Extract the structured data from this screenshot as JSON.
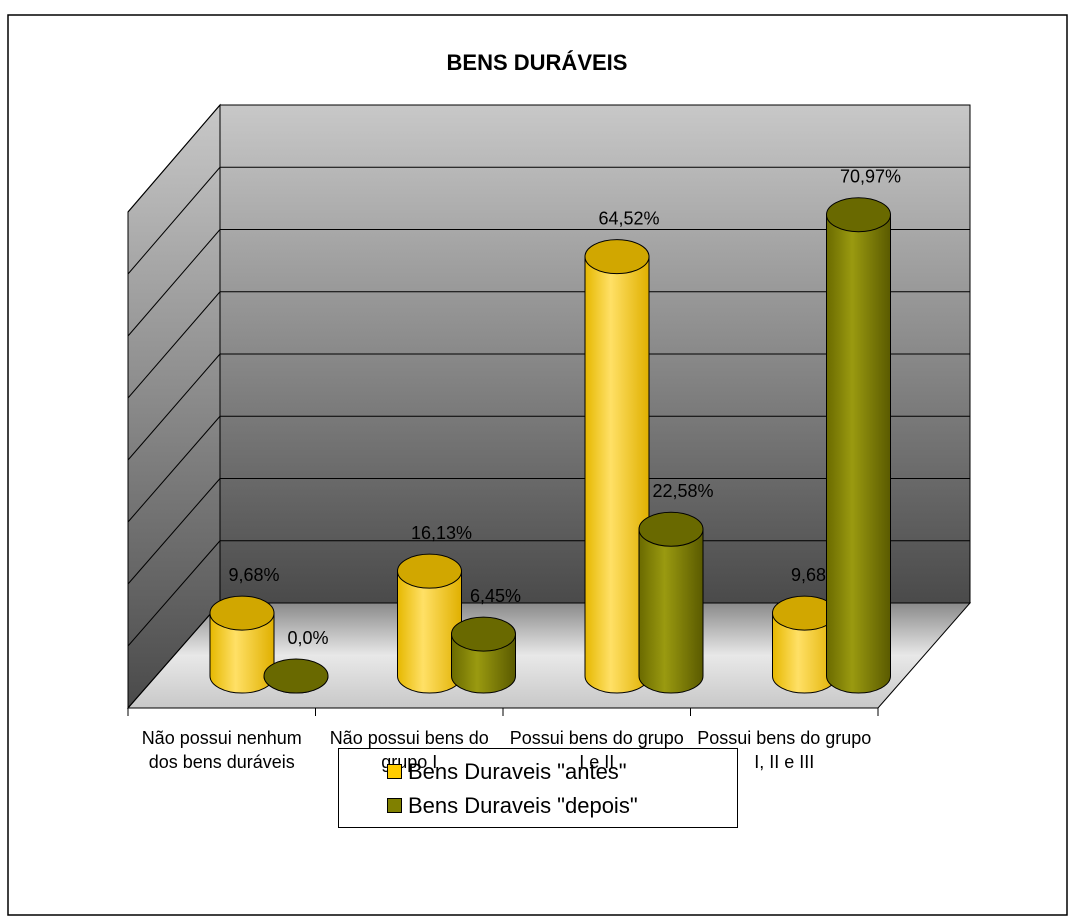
{
  "chart_data": {
    "type": "bar3d",
    "title": "BENS DURÁVEIS",
    "categories": [
      "Não possui nenhum dos bens duráveis",
      "Não possui bens do grupo I",
      "Possui bens do grupo I e II",
      "Possui bens do grupo I, II e III"
    ],
    "series": [
      {
        "name": "Bens Duraveis \"antes\"",
        "color": "#FFCC00",
        "values": [
          9.68,
          16.13,
          64.52,
          9.68
        ],
        "value_labels": [
          "9,68%",
          "16,13%",
          "64,52%",
          "9,68%"
        ]
      },
      {
        "name": "Bens Duraveis \"depois\"",
        "color": "#808000",
        "values": [
          0.0,
          6.45,
          22.58,
          70.97
        ],
        "value_labels": [
          "0,0%",
          "6,45%",
          "22,58%",
          "70,97%"
        ]
      }
    ],
    "ylim": [
      0,
      80
    ],
    "yticks": [
      0,
      10,
      20,
      30,
      40,
      50,
      60,
      70,
      80
    ],
    "grid": true
  }
}
